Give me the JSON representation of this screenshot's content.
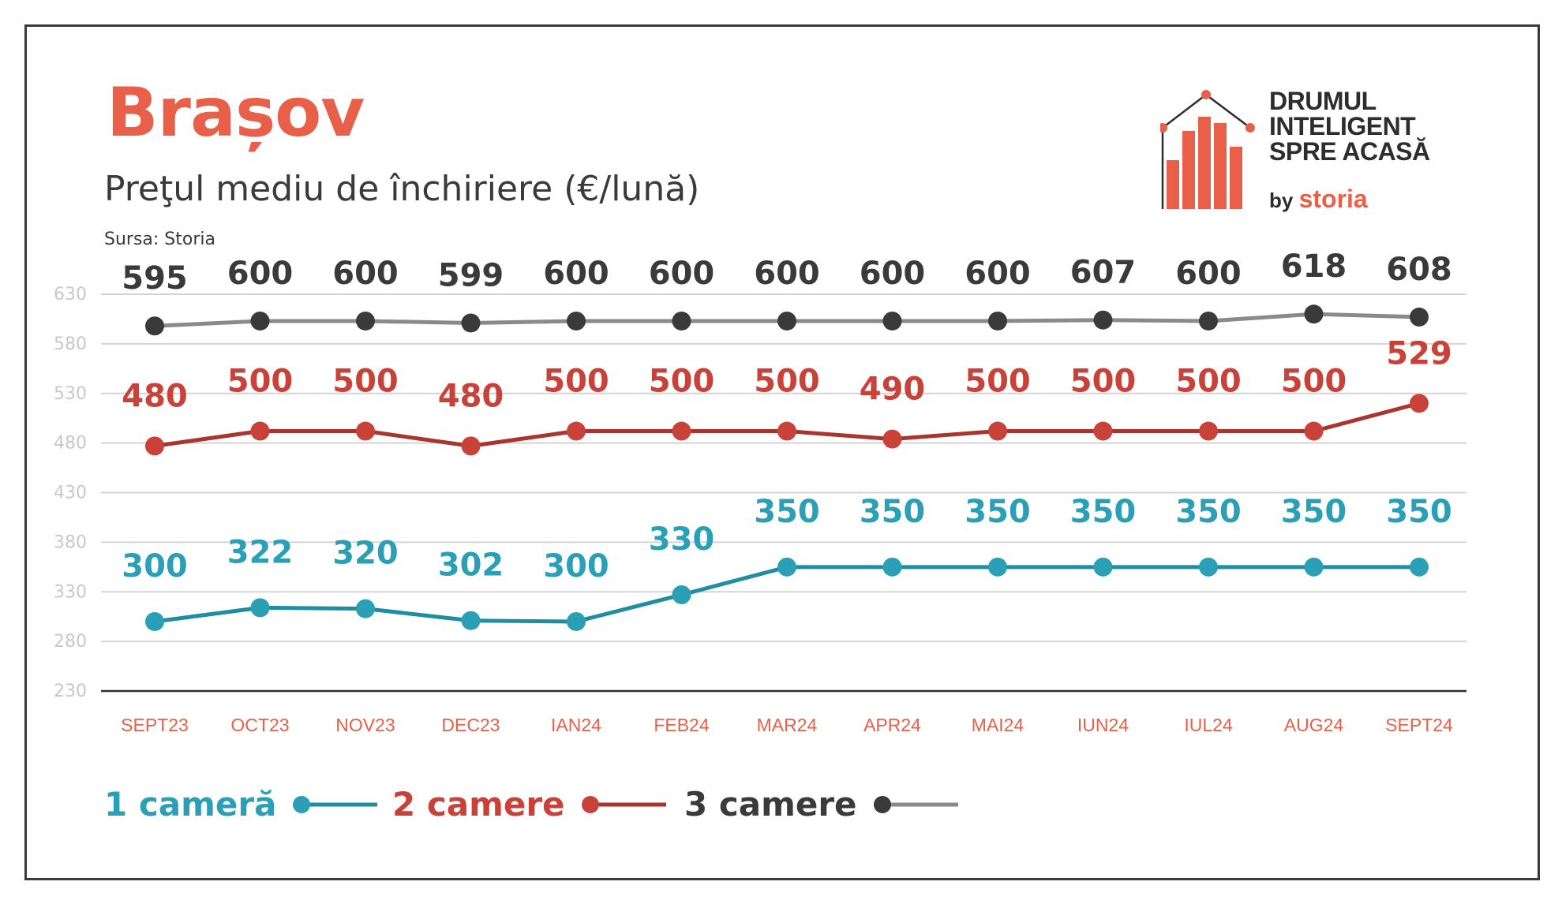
{
  "header": {
    "title": "Brașov",
    "subtitle": "Preţul mediu de închiriere (€/lună)",
    "source": "Sursa: Storia"
  },
  "logo": {
    "line1": "DRUMUL",
    "line2": "INTELIGENT",
    "line3": "SPRE ACASĂ",
    "by": "by",
    "brand": "storia"
  },
  "colors": {
    "accent": "#e8604a",
    "camera1": "#2a9fb5",
    "camera2": "#c8423a",
    "camera3": "#3a3a3a",
    "camera3_line": "#8a8a8a",
    "grid": "#d4d4d4",
    "axis_ticks": "#c8c8c8"
  },
  "chart_data": {
    "type": "line",
    "categories": [
      "SEPT23",
      "OCT23",
      "NOV23",
      "DEC23",
      "IAN24",
      "FEB24",
      "MAR24",
      "APR24",
      "MAI24",
      "IUN24",
      "IUL24",
      "AUG24",
      "SEPT24"
    ],
    "ylim": [
      230,
      630
    ],
    "yticks": [
      230,
      280,
      330,
      380,
      430,
      480,
      530,
      580,
      630
    ],
    "grid": true,
    "legend_position": "bottom-left",
    "series": [
      {
        "name": "1 cameră",
        "values": [
          300,
          322,
          320,
          302,
          300,
          330,
          350,
          350,
          350,
          350,
          350,
          350,
          350
        ],
        "plotted": [
          300,
          314,
          313,
          301,
          300,
          327,
          355,
          355,
          355,
          355,
          355,
          355,
          355
        ]
      },
      {
        "name": "2 camere",
        "values": [
          480,
          500,
          500,
          480,
          500,
          500,
          500,
          490,
          500,
          500,
          500,
          500,
          529
        ],
        "plotted": [
          477,
          492,
          492,
          477,
          492,
          492,
          492,
          484,
          492,
          492,
          492,
          492,
          520
        ]
      },
      {
        "name": "3 camere",
        "values": [
          595,
          600,
          600,
          599,
          600,
          600,
          600,
          600,
          600,
          607,
          600,
          618,
          608
        ],
        "plotted": [
          598,
          603,
          603,
          601,
          603,
          603,
          603,
          603,
          603,
          604,
          603,
          610,
          607
        ]
      }
    ]
  }
}
